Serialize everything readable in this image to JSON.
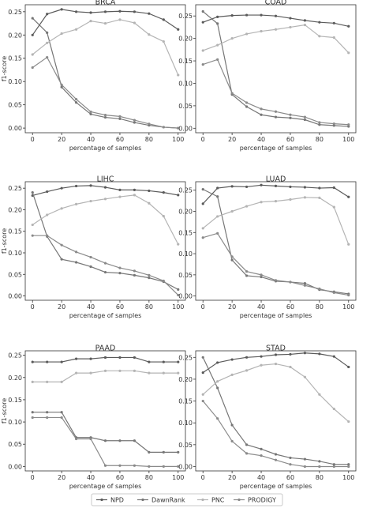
{
  "chart_data": [
    {
      "type": "line",
      "title": "BRCA",
      "xlabel": "percentage of samples",
      "ylabel": "f1-score",
      "x": [
        0,
        10,
        20,
        30,
        40,
        50,
        60,
        70,
        80,
        90,
        100
      ],
      "xticks": [
        "0",
        "20",
        "40",
        "60",
        "80",
        "100"
      ],
      "yticks": [
        "0.00",
        "0.05",
        "0.10",
        "0.15",
        "0.20",
        "0.25"
      ],
      "xlim": [
        -5,
        105
      ],
      "ylim": [
        -0.01,
        0.265
      ],
      "series": [
        {
          "name": "NPD",
          "values": [
            0.2,
            0.245,
            0.255,
            0.25,
            0.248,
            0.25,
            0.251,
            0.25,
            0.246,
            0.233,
            0.212
          ]
        },
        {
          "name": "DawnRank",
          "values": [
            0.236,
            0.205,
            0.088,
            0.055,
            0.03,
            0.023,
            0.02,
            0.012,
            0.006,
            0.002,
            0.0
          ]
        },
        {
          "name": "PNC",
          "values": [
            0.158,
            0.183,
            0.203,
            0.212,
            0.23,
            0.225,
            0.233,
            0.226,
            0.201,
            0.186,
            0.114
          ]
        },
        {
          "name": "PRODIGY",
          "values": [
            0.13,
            0.152,
            0.093,
            0.062,
            0.035,
            0.028,
            0.025,
            0.017,
            0.009,
            0.002,
            0.0
          ]
        }
      ]
    },
    {
      "type": "line",
      "title": "COAD",
      "xlabel": "percentage of samples",
      "ylabel": "",
      "x": [
        0,
        10,
        20,
        30,
        40,
        50,
        60,
        70,
        80,
        90,
        100
      ],
      "xticks": [
        "0",
        "20",
        "40",
        "60",
        "80",
        "100"
      ],
      "yticks": [
        "0.00",
        "0.05",
        "0.10",
        "0.15",
        "0.20",
        "0.25"
      ],
      "xlim": [
        -5,
        105
      ],
      "ylim": [
        -0.01,
        0.275
      ],
      "series": [
        {
          "name": "NPD",
          "values": [
            0.236,
            0.248,
            0.251,
            0.252,
            0.252,
            0.25,
            0.245,
            0.24,
            0.236,
            0.234,
            0.227
          ]
        },
        {
          "name": "DawnRank",
          "values": [
            0.26,
            0.233,
            0.075,
            0.048,
            0.03,
            0.025,
            0.023,
            0.019,
            0.008,
            0.006,
            0.004
          ]
        },
        {
          "name": "PNC",
          "values": [
            0.173,
            0.185,
            0.2,
            0.21,
            0.216,
            0.22,
            0.225,
            0.23,
            0.205,
            0.202,
            0.168
          ]
        },
        {
          "name": "PRODIGY",
          "values": [
            0.142,
            0.153,
            0.078,
            0.057,
            0.043,
            0.037,
            0.03,
            0.025,
            0.013,
            0.01,
            0.008
          ]
        }
      ]
    },
    {
      "type": "line",
      "title": "LIHC",
      "xlabel": "percentage of samples",
      "ylabel": "f1-score",
      "x": [
        0,
        10,
        20,
        30,
        40,
        50,
        60,
        70,
        80,
        90,
        100
      ],
      "xticks": [
        "0",
        "20",
        "40",
        "60",
        "80",
        "100"
      ],
      "yticks": [
        "0.00",
        "0.05",
        "0.10",
        "0.15",
        "0.20",
        "0.25"
      ],
      "xlim": [
        -5,
        105
      ],
      "ylim": [
        -0.01,
        0.265
      ],
      "series": [
        {
          "name": "NPD",
          "values": [
            0.233,
            0.242,
            0.25,
            0.255,
            0.256,
            0.252,
            0.246,
            0.246,
            0.244,
            0.24,
            0.234
          ]
        },
        {
          "name": "DawnRank",
          "values": [
            0.24,
            0.138,
            0.085,
            0.078,
            0.068,
            0.055,
            0.053,
            0.048,
            0.042,
            0.033,
            0.015
          ]
        },
        {
          "name": "PNC",
          "values": [
            0.165,
            0.188,
            0.203,
            0.213,
            0.22,
            0.225,
            0.23,
            0.234,
            0.215,
            0.185,
            0.12
          ]
        },
        {
          "name": "PRODIGY",
          "values": [
            0.14,
            0.14,
            0.118,
            0.102,
            0.09,
            0.076,
            0.065,
            0.058,
            0.048,
            0.035,
            0.002
          ]
        }
      ]
    },
    {
      "type": "line",
      "title": "LUAD",
      "xlabel": "percentage of samples",
      "ylabel": "",
      "x": [
        0,
        10,
        20,
        30,
        40,
        50,
        60,
        70,
        80,
        90,
        100
      ],
      "xticks": [
        "0",
        "20",
        "40",
        "60",
        "80",
        "100"
      ],
      "yticks": [
        "0.00",
        "0.05",
        "0.10",
        "0.15",
        "0.20",
        "0.25"
      ],
      "xlim": [
        -5,
        105
      ],
      "ylim": [
        -0.01,
        0.27
      ],
      "series": [
        {
          "name": "NPD",
          "values": [
            0.218,
            0.255,
            0.259,
            0.258,
            0.262,
            0.26,
            0.258,
            0.257,
            0.255,
            0.256,
            0.234
          ]
        },
        {
          "name": "DawnRank",
          "values": [
            0.252,
            0.235,
            0.085,
            0.048,
            0.045,
            0.035,
            0.033,
            0.03,
            0.015,
            0.01,
            0.005
          ]
        },
        {
          "name": "PNC",
          "values": [
            0.16,
            0.188,
            0.2,
            0.212,
            0.222,
            0.224,
            0.228,
            0.233,
            0.232,
            0.21,
            0.122
          ]
        },
        {
          "name": "PRODIGY",
          "values": [
            0.138,
            0.148,
            0.093,
            0.058,
            0.05,
            0.037,
            0.033,
            0.025,
            0.017,
            0.008,
            0.002
          ]
        }
      ]
    },
    {
      "type": "line",
      "title": "PAAD",
      "xlabel": "percentage of samples",
      "ylabel": "f1-score",
      "x": [
        0,
        10,
        20,
        30,
        40,
        50,
        60,
        70,
        80,
        90,
        100
      ],
      "xticks": [
        "0",
        "20",
        "40",
        "60",
        "80",
        "100"
      ],
      "yticks": [
        "0.00",
        "0.05",
        "0.10",
        "0.15",
        "0.20",
        "0.25"
      ],
      "xlim": [
        -5,
        105
      ],
      "ylim": [
        -0.01,
        0.26
      ],
      "series": [
        {
          "name": "NPD",
          "values": [
            0.235,
            0.235,
            0.235,
            0.242,
            0.242,
            0.245,
            0.245,
            0.245,
            0.235,
            0.235,
            0.235
          ]
        },
        {
          "name": "DawnRank",
          "values": [
            0.122,
            0.122,
            0.122,
            0.065,
            0.065,
            0.058,
            0.058,
            0.058,
            0.032,
            0.032,
            0.032
          ]
        },
        {
          "name": "PNC",
          "values": [
            0.19,
            0.19,
            0.19,
            0.21,
            0.21,
            0.215,
            0.215,
            0.215,
            0.21,
            0.21,
            0.21
          ]
        },
        {
          "name": "PRODIGY",
          "values": [
            0.11,
            0.11,
            0.11,
            0.062,
            0.062,
            0.002,
            0.002,
            0.002,
            0.0,
            0.0,
            0.0
          ]
        }
      ]
    },
    {
      "type": "line",
      "title": "STAD",
      "xlabel": "percentage of samples",
      "ylabel": "",
      "x": [
        0,
        10,
        20,
        30,
        40,
        50,
        60,
        70,
        80,
        90,
        100
      ],
      "xticks": [
        "0",
        "20",
        "40",
        "60",
        "80",
        "100"
      ],
      "yticks": [
        "0.00",
        "0.05",
        "0.10",
        "0.15",
        "0.20",
        "0.25"
      ],
      "xlim": [
        -5,
        105
      ],
      "ylim": [
        -0.01,
        0.265
      ],
      "series": [
        {
          "name": "NPD",
          "values": [
            0.215,
            0.238,
            0.245,
            0.25,
            0.252,
            0.256,
            0.257,
            0.26,
            0.258,
            0.252,
            0.228
          ]
        },
        {
          "name": "DawnRank",
          "values": [
            0.25,
            0.18,
            0.095,
            0.05,
            0.04,
            0.028,
            0.02,
            0.017,
            0.012,
            0.005,
            0.005
          ]
        },
        {
          "name": "PNC",
          "values": [
            0.165,
            0.195,
            0.21,
            0.22,
            0.232,
            0.235,
            0.228,
            0.205,
            0.165,
            0.132,
            0.103
          ]
        },
        {
          "name": "PRODIGY",
          "values": [
            0.15,
            0.11,
            0.058,
            0.03,
            0.025,
            0.015,
            0.005,
            0.0,
            0.0,
            0.0,
            0.0
          ]
        }
      ]
    }
  ],
  "legend": {
    "placement": "bottom-center",
    "items": [
      {
        "name": "NPD",
        "color": "#5a5a5a"
      },
      {
        "name": "DawnRank",
        "color": "#767676"
      },
      {
        "name": "PNC",
        "color": "#b4b4b4"
      },
      {
        "name": "PRODIGY",
        "color": "#8a8a8a"
      }
    ]
  },
  "colors": {
    "NPD": "#5a5a5a",
    "DawnRank": "#767676",
    "PNC": "#b4b4b4",
    "PRODIGY": "#8a8a8a",
    "axis": "#333333"
  }
}
